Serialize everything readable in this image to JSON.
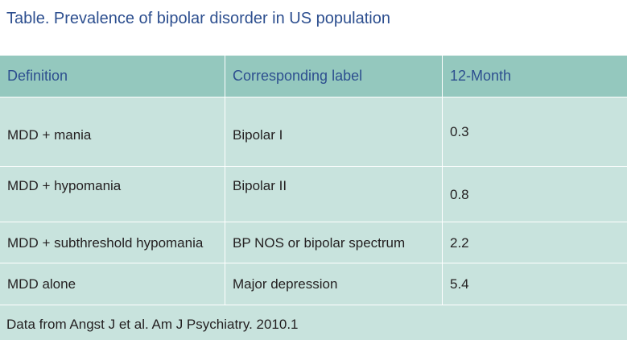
{
  "title": "Table. Prevalence of bipolar disorder in US population",
  "table": {
    "headers": [
      "Definition",
      "Corresponding label",
      "12-Month"
    ],
    "rows": [
      [
        "MDD + mania",
        "Bipolar I",
        "0.3"
      ],
      [
        "MDD + hypomania",
        "Bipolar II",
        "0.8"
      ],
      [
        "MDD + subthreshold hypomania",
        "BP NOS or bipolar spectrum",
        "2.2"
      ],
      [
        "MDD alone",
        "Major depression",
        "5.4"
      ]
    ]
  },
  "footnote": "Data from Angst J et al. Am J Psychiatry. 2010.1"
}
